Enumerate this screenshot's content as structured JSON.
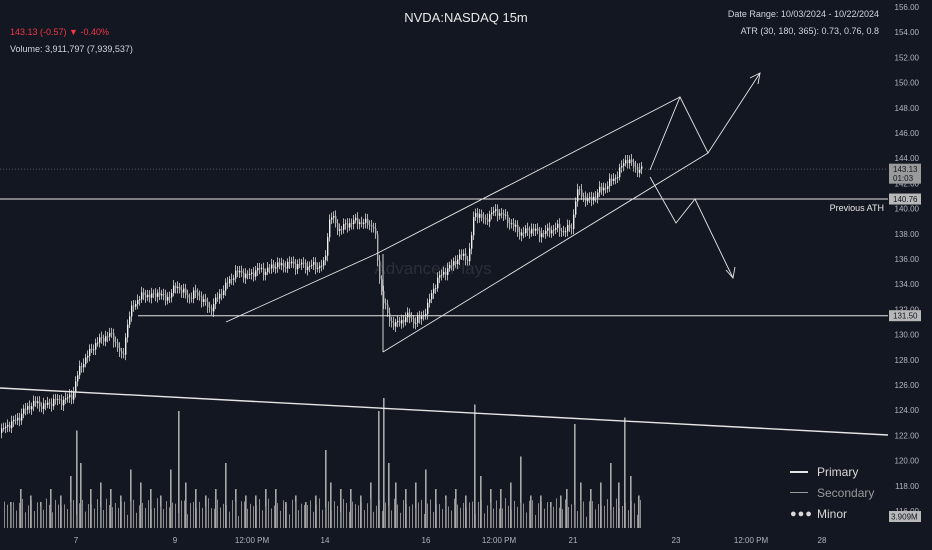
{
  "header": {
    "title": "NVDA:NASDAQ 15m",
    "price_line": "143.13 (-0.57) ▼ -0.40%",
    "volume_line": "Volume: 3,911,797 (7,939,537)",
    "date_range": "Date Range: 10/03/2024 - 10/22/2024",
    "atr": "ATR (30, 180, 365): 0.73, 0.76, 0.8",
    "watermark": "AdvancedPlays"
  },
  "labels": {
    "previous_ath": "Previous ATH",
    "price_badge": "143.13",
    "countdown": "01:03",
    "ath_badge": "140.76",
    "support_badge": "131.50",
    "volume_badge": "3.909M"
  },
  "legend": {
    "items": [
      {
        "label": "Primary",
        "style": "solid"
      },
      {
        "label": "Secondary",
        "style": "thin"
      },
      {
        "label": "Minor",
        "style": "dots"
      }
    ]
  },
  "colors": {
    "background": "#131722",
    "candle": "#d9d9d9",
    "line": "#e6e6e6",
    "price_down": "#f23645",
    "badge_bg": "#787b86"
  },
  "chart_data": {
    "type": "candlestick",
    "title": "NVDA:NASDAQ 15m",
    "ylim": [
      114,
      156
    ],
    "yticks": [
      "156.00",
      "154.00",
      "152.00",
      "150.00",
      "148.00",
      "146.00",
      "144.00",
      "142.00",
      "140.00",
      "138.00",
      "136.00",
      "134.00",
      "132.00",
      "130.00",
      "128.00",
      "126.00",
      "124.00",
      "122.00",
      "120.00",
      "118.00",
      "116.00"
    ],
    "xticks": [
      "7",
      "9",
      "12:00 PM",
      "14",
      "16",
      "12:00 PM",
      "21",
      "23",
      "12:00 PM",
      "28"
    ],
    "price_path": [
      [
        0,
        122.2
      ],
      [
        6,
        122.8
      ],
      [
        12,
        123.0
      ],
      [
        18,
        123.4
      ],
      [
        24,
        124.0
      ],
      [
        30,
        124.4
      ],
      [
        36,
        124.6
      ],
      [
        42,
        124.3
      ],
      [
        48,
        124.5
      ],
      [
        54,
        124.8
      ],
      [
        60,
        124.7
      ],
      [
        66,
        124.9
      ],
      [
        72,
        125.2
      ],
      [
        76,
        126.5
      ],
      [
        80,
        127.5
      ],
      [
        86,
        128.2
      ],
      [
        92,
        129.0
      ],
      [
        98,
        129.5
      ],
      [
        104,
        129.8
      ],
      [
        110,
        130.0
      ],
      [
        114,
        129.6
      ],
      [
        118,
        128.8
      ],
      [
        122,
        128.0
      ],
      [
        126,
        130.5
      ],
      [
        130,
        131.8
      ],
      [
        134,
        132.5
      ],
      [
        140,
        133.0
      ],
      [
        146,
        133.2
      ],
      [
        152,
        133.0
      ],
      [
        158,
        133.4
      ],
      [
        164,
        132.8
      ],
      [
        170,
        133.2
      ],
      [
        176,
        133.9
      ],
      [
        182,
        133.4
      ],
      [
        188,
        132.9
      ],
      [
        194,
        133.3
      ],
      [
        200,
        133.0
      ],
      [
        206,
        132.3
      ],
      [
        210,
        132.0
      ],
      [
        216,
        132.8
      ],
      [
        222,
        133.5
      ],
      [
        228,
        134.2
      ],
      [
        234,
        134.8
      ],
      [
        240,
        135.0
      ],
      [
        246,
        134.6
      ],
      [
        252,
        134.9
      ],
      [
        258,
        135.2
      ],
      [
        264,
        135.0
      ],
      [
        270,
        135.3
      ],
      [
        276,
        135.6
      ],
      [
        282,
        135.4
      ],
      [
        288,
        135.7
      ],
      [
        294,
        135.5
      ],
      [
        300,
        135.6
      ],
      [
        306,
        135.4
      ],
      [
        312,
        135.5
      ],
      [
        318,
        135.4
      ],
      [
        324,
        135.6
      ],
      [
        328,
        138.7
      ],
      [
        330,
        139.5
      ],
      [
        334,
        139.0
      ],
      [
        338,
        138.3
      ],
      [
        344,
        138.6
      ],
      [
        350,
        138.9
      ],
      [
        356,
        139.0
      ],
      [
        362,
        138.9
      ],
      [
        368,
        138.8
      ],
      [
        374,
        138.5
      ],
      [
        378,
        135.0
      ],
      [
        382,
        133.0
      ],
      [
        386,
        131.8
      ],
      [
        390,
        131.0
      ],
      [
        396,
        130.8
      ],
      [
        402,
        131.2
      ],
      [
        408,
        131.5
      ],
      [
        414,
        131.0
      ],
      [
        420,
        131.3
      ],
      [
        426,
        132.0
      ],
      [
        432,
        133.5
      ],
      [
        438,
        134.5
      ],
      [
        444,
        135.0
      ],
      [
        450,
        135.4
      ],
      [
        456,
        136.0
      ],
      [
        462,
        136.3
      ],
      [
        468,
        136.0
      ],
      [
        472,
        138.5
      ],
      [
        474,
        139.8
      ],
      [
        478,
        139.5
      ],
      [
        484,
        139.0
      ],
      [
        490,
        139.6
      ],
      [
        496,
        139.8
      ],
      [
        502,
        139.5
      ],
      [
        508,
        139.0
      ],
      [
        514,
        138.5
      ],
      [
        520,
        138.0
      ],
      [
        526,
        138.2
      ],
      [
        532,
        138.4
      ],
      [
        538,
        138.0
      ],
      [
        544,
        138.1
      ],
      [
        550,
        138.3
      ],
      [
        556,
        138.5
      ],
      [
        562,
        138.2
      ],
      [
        568,
        138.4
      ],
      [
        572,
        138.6
      ],
      [
        574,
        140.5
      ],
      [
        578,
        141.5
      ],
      [
        582,
        141.0
      ],
      [
        588,
        140.6
      ],
      [
        594,
        141.0
      ],
      [
        600,
        141.5
      ],
      [
        606,
        141.8
      ],
      [
        612,
        142.3
      ],
      [
        618,
        142.8
      ],
      [
        622,
        143.5
      ],
      [
        626,
        144.0
      ],
      [
        630,
        143.6
      ],
      [
        634,
        143.3
      ],
      [
        638,
        143.1
      ],
      [
        642,
        143.13
      ]
    ],
    "volume": [
      [
        10,
        0.2
      ],
      [
        20,
        0.3
      ],
      [
        30,
        0.25
      ],
      [
        40,
        0.2
      ],
      [
        50,
        0.3
      ],
      [
        60,
        0.25
      ],
      [
        70,
        0.4
      ],
      [
        76,
        0.75
      ],
      [
        80,
        0.5
      ],
      [
        90,
        0.3
      ],
      [
        100,
        0.35
      ],
      [
        110,
        0.3
      ],
      [
        120,
        0.25
      ],
      [
        130,
        0.45
      ],
      [
        140,
        0.35
      ],
      [
        150,
        0.3
      ],
      [
        160,
        0.25
      ],
      [
        170,
        0.45
      ],
      [
        178,
        0.9
      ],
      [
        185,
        0.35
      ],
      [
        195,
        0.3
      ],
      [
        205,
        0.25
      ],
      [
        215,
        0.3
      ],
      [
        225,
        0.5
      ],
      [
        235,
        0.3
      ],
      [
        245,
        0.25
      ],
      [
        255,
        0.25
      ],
      [
        265,
        0.3
      ],
      [
        275,
        0.3
      ],
      [
        285,
        0.2
      ],
      [
        295,
        0.25
      ],
      [
        305,
        0.2
      ],
      [
        315,
        0.25
      ],
      [
        325,
        0.6
      ],
      [
        330,
        0.35
      ],
      [
        340,
        0.3
      ],
      [
        350,
        0.3
      ],
      [
        360,
        0.25
      ],
      [
        370,
        0.35
      ],
      [
        378,
        0.9
      ],
      [
        383,
        1.0
      ],
      [
        388,
        0.5
      ],
      [
        395,
        0.35
      ],
      [
        405,
        0.3
      ],
      [
        415,
        0.35
      ],
      [
        425,
        0.45
      ],
      [
        435,
        0.3
      ],
      [
        445,
        0.25
      ],
      [
        455,
        0.3
      ],
      [
        465,
        0.25
      ],
      [
        474,
        0.95
      ],
      [
        480,
        0.4
      ],
      [
        490,
        0.3
      ],
      [
        500,
        0.3
      ],
      [
        510,
        0.35
      ],
      [
        520,
        0.55
      ],
      [
        530,
        0.25
      ],
      [
        540,
        0.25
      ],
      [
        550,
        0.2
      ],
      [
        560,
        0.25
      ],
      [
        566,
        0.3
      ],
      [
        574,
        0.8
      ],
      [
        580,
        0.35
      ],
      [
        590,
        0.3
      ],
      [
        600,
        0.35
      ],
      [
        610,
        0.5
      ],
      [
        618,
        0.35
      ],
      [
        624,
        0.85
      ],
      [
        630,
        0.4
      ],
      [
        638,
        0.25
      ]
    ],
    "levels": [
      {
        "name": "Previous ATH",
        "value": 140.76
      },
      {
        "name": "support",
        "value": 131.5
      },
      {
        "name": "last",
        "value": 143.13
      }
    ]
  }
}
